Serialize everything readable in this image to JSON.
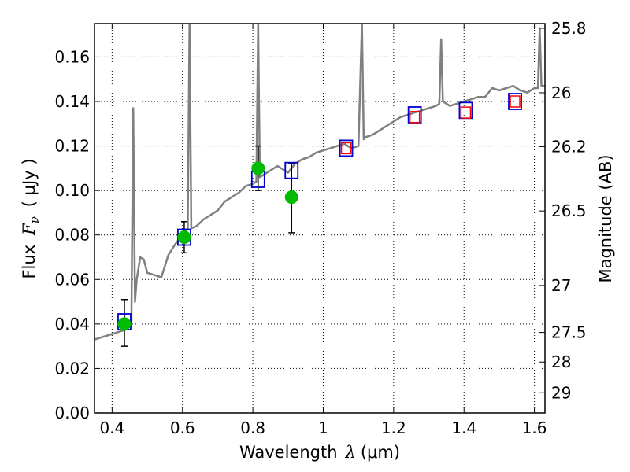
{
  "chart_data": {
    "type": "scatter",
    "xlabel": "Wavelength  λ (μm)",
    "xlabel_main": "Wavelength",
    "xlabel_symbol": "λ",
    "xlabel_unit": "(μm)",
    "ylabel": "Flux  Fν  ( μJy )",
    "ylabel_main": "Flux",
    "ylabel_symbol": "F",
    "ylabel_sub": "ν",
    "ylabel_unit": "( μJy )",
    "y2label": "Magnitude (AB)",
    "xlim": [
      0.35,
      1.63
    ],
    "ylim": [
      0.0,
      0.175
    ],
    "grid": true,
    "xticks": [
      0.4,
      0.6,
      0.8,
      1.0,
      1.2,
      1.4,
      1.6
    ],
    "xtick_labels": [
      "0.4",
      "0.6",
      "0.8",
      "1",
      "1.2",
      "1.4",
      "1.6"
    ],
    "yticks": [
      0.0,
      0.02,
      0.04,
      0.06,
      0.08,
      0.1,
      0.12,
      0.14,
      0.16
    ],
    "ytick_labels": [
      "0.00",
      "0.02",
      "0.04",
      "0.06",
      "0.08",
      "0.10",
      "0.12",
      "0.14",
      "0.16"
    ],
    "y2ticks": [
      {
        "label": "25.8",
        "flux": 0.1729
      },
      {
        "label": "26",
        "flux": 0.1439
      },
      {
        "label": "26.2",
        "flux": 0.1197
      },
      {
        "label": "26.5",
        "flux": 0.0908
      },
      {
        "label": "27",
        "flux": 0.0573
      },
      {
        "label": "27.5",
        "flux": 0.0362
      },
      {
        "label": "28",
        "flux": 0.0229
      },
      {
        "label": "29",
        "flux": 0.0091
      }
    ],
    "series": [
      {
        "style": "model-line",
        "color": "#808080",
        "x": [
          0.35,
          0.37,
          0.39,
          0.41,
          0.43,
          0.445,
          0.455,
          0.46,
          0.465,
          0.47,
          0.48,
          0.49,
          0.5,
          0.52,
          0.54,
          0.56,
          0.58,
          0.6,
          0.615,
          0.62,
          0.625,
          0.64,
          0.66,
          0.68,
          0.7,
          0.72,
          0.74,
          0.76,
          0.78,
          0.8,
          0.81,
          0.815,
          0.82,
          0.83,
          0.85,
          0.87,
          0.9,
          0.92,
          0.94,
          0.96,
          0.98,
          1.0,
          1.02,
          1.04,
          1.06,
          1.08,
          1.1,
          1.11,
          1.115,
          1.12,
          1.14,
          1.16,
          1.18,
          1.2,
          1.22,
          1.24,
          1.26,
          1.28,
          1.3,
          1.32,
          1.33,
          1.335,
          1.34,
          1.36,
          1.38,
          1.4,
          1.42,
          1.44,
          1.46,
          1.48,
          1.5,
          1.52,
          1.54,
          1.56,
          1.58,
          1.6,
          1.61,
          1.615,
          1.62,
          1.63
        ],
        "y": [
          0.033,
          0.034,
          0.035,
          0.036,
          0.037,
          0.038,
          0.042,
          0.137,
          0.05,
          0.06,
          0.07,
          0.069,
          0.063,
          0.062,
          0.061,
          0.071,
          0.076,
          0.08,
          0.083,
          0.175,
          0.083,
          0.084,
          0.087,
          0.089,
          0.091,
          0.095,
          0.097,
          0.099,
          0.102,
          0.103,
          0.104,
          0.175,
          0.106,
          0.107,
          0.109,
          0.111,
          0.108,
          0.112,
          0.114,
          0.115,
          0.117,
          0.118,
          0.119,
          0.12,
          0.121,
          0.119,
          0.12,
          0.175,
          0.123,
          0.124,
          0.125,
          0.127,
          0.129,
          0.131,
          0.133,
          0.134,
          0.135,
          0.136,
          0.137,
          0.138,
          0.139,
          0.168,
          0.14,
          0.138,
          0.139,
          0.14,
          0.141,
          0.142,
          0.142,
          0.146,
          0.145,
          0.146,
          0.147,
          0.145,
          0.144,
          0.146,
          0.146,
          0.173,
          0.147,
          0.147
        ]
      },
      {
        "style": "blue-squares",
        "color": "#0000cc",
        "x": [
          0.435,
          0.605,
          0.815,
          0.91,
          1.065,
          1.26,
          1.405,
          1.545
        ],
        "y": [
          0.041,
          0.079,
          0.105,
          0.109,
          0.119,
          0.134,
          0.136,
          0.14
        ]
      },
      {
        "style": "red-squares",
        "color": "#ff0000",
        "x": [
          1.065,
          1.26,
          1.405,
          1.545
        ],
        "y": [
          0.119,
          0.133,
          0.135,
          0.14
        ]
      },
      {
        "style": "green-circles",
        "color": "#00bb00",
        "x": [
          0.435,
          0.605,
          0.815,
          0.91
        ],
        "y": [
          0.04,
          0.079,
          0.11,
          0.097
        ],
        "yerr_low": [
          0.03,
          0.072,
          0.1,
          0.081
        ],
        "yerr_high": [
          0.051,
          0.086,
          0.12,
          0.112
        ]
      }
    ]
  }
}
